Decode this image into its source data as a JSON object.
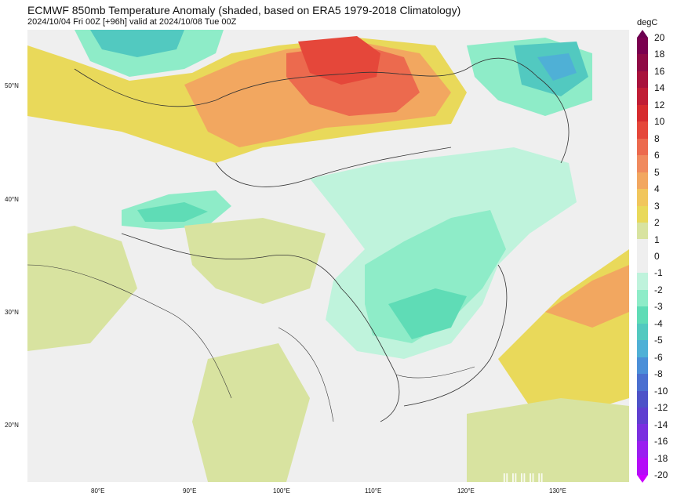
{
  "header": {
    "title": "ECMWF 850mb Temperature Anomaly (shaded, based on ERA5 1979-2018 Climatology)",
    "subtitle": "2024/10/04 Fri 00Z [+96h] valid at 2024/10/08 Tue 00Z"
  },
  "axes": {
    "lat_labels": [
      "50°N",
      "40°N",
      "30°N",
      "20°N"
    ],
    "lon_labels": [
      "80°E",
      "90°E",
      "100°E",
      "110°E",
      "120°E",
      "130°E"
    ]
  },
  "colorbar": {
    "unit": "degC",
    "levels": [
      "20",
      "18",
      "16",
      "14",
      "12",
      "10",
      "8",
      "6",
      "5",
      "4",
      "3",
      "2",
      "1",
      "0",
      "-1",
      "-2",
      "-3",
      "-4",
      "-5",
      "-6",
      "-8",
      "-10",
      "-12",
      "-14",
      "-16",
      "-18",
      "-20"
    ],
    "colors": [
      "#7a004f",
      "#8f0a45",
      "#a8123c",
      "#c01d35",
      "#d62b2e",
      "#e5473a",
      "#ec6a4e",
      "#f08a5e",
      "#f2a760",
      "#f1c65c",
      "#e9d95a",
      "#d8e3a0",
      "#efefef",
      "#efefef",
      "#bff3dc",
      "#8eecc8",
      "#5fdcb6",
      "#52c9c0",
      "#4fb0d6",
      "#4b8fd8",
      "#4a6fd0",
      "#4d52c8",
      "#5f3fd0",
      "#7a2fe0",
      "#9a1ef0",
      "#b40cf8",
      "#cc00ff"
    ]
  },
  "overlay": {
    "watermark": "‖‖‖‖‖"
  }
}
